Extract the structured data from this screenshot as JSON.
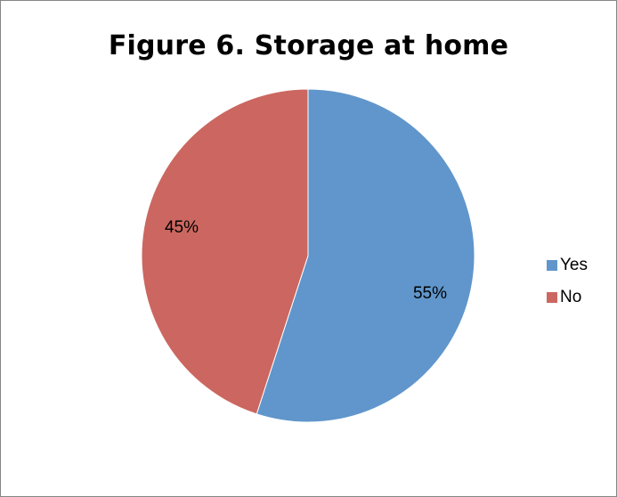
{
  "chart_data": {
    "type": "pie",
    "title": "Figure 6. Storage at home",
    "categories": [
      "Yes",
      "No"
    ],
    "values": [
      55,
      45
    ],
    "labels": [
      "55%",
      "45%"
    ],
    "colors": [
      "#6096cb",
      "#cb6760"
    ],
    "legend_position": "right"
  }
}
